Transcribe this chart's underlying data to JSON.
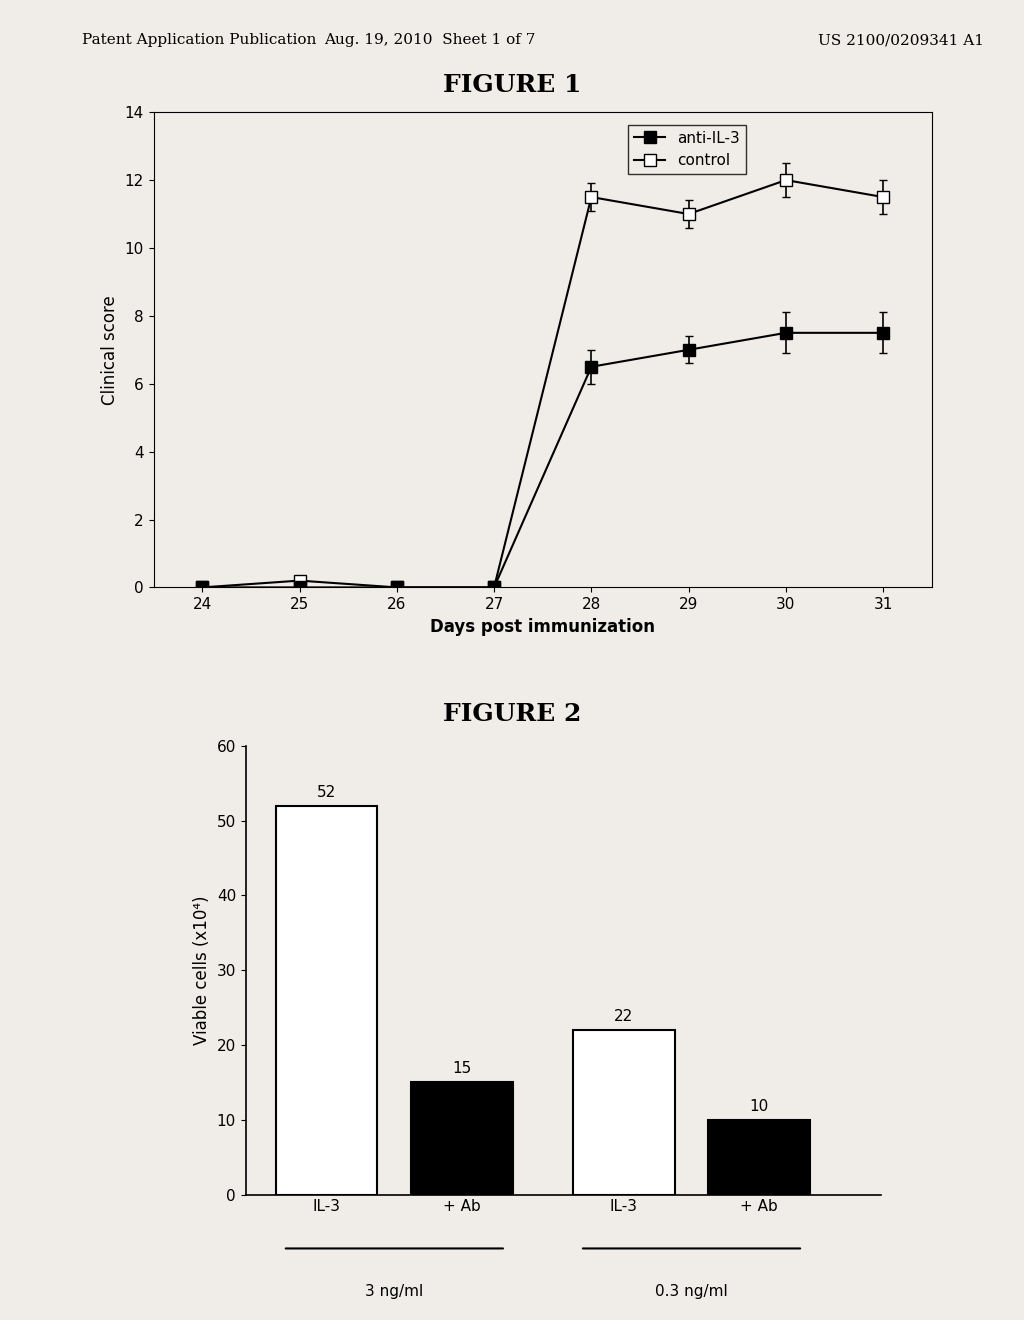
{
  "header_left": "Patent Application Publication",
  "header_mid": "Aug. 19, 2010  Sheet 1 of 7",
  "header_right": "US 2100/0209341 A1",
  "fig1_title": "FIGURE 1",
  "fig1_xlabel": "Days post immunization",
  "fig1_ylabel": "Clinical score",
  "fig1_xdata": [
    24,
    25,
    26,
    27,
    28,
    29,
    30,
    31
  ],
  "fig1_anti_il3_y": [
    0,
    0,
    0,
    0,
    6.5,
    7.0,
    7.5,
    7.5
  ],
  "fig1_anti_il3_yerr": [
    0,
    0,
    0,
    0,
    0.5,
    0.4,
    0.6,
    0.6
  ],
  "fig1_control_y": [
    0,
    0.2,
    0,
    0,
    11.5,
    11.0,
    12.0,
    11.5
  ],
  "fig1_control_yerr": [
    0,
    0,
    0,
    0,
    0.4,
    0.4,
    0.5,
    0.5
  ],
  "fig1_ylim": [
    0,
    14
  ],
  "fig1_yticks": [
    0,
    2,
    4,
    6,
    8,
    10,
    12,
    14
  ],
  "fig1_legend_anti_il3": "anti-IL-3",
  "fig1_legend_control": "control",
  "fig2_title": "FIGURE 2",
  "fig2_ylabel": "Viable cells (x10⁴)",
  "fig2_bar_values": [
    52,
    15,
    22,
    10
  ],
  "fig2_bar_colors": [
    "white",
    "black",
    "white",
    "black"
  ],
  "fig2_bar_labels": [
    "IL-3",
    "+ Ab",
    "IL-3",
    "+ Ab"
  ],
  "fig2_bar_annotations": [
    "52",
    "15",
    "22",
    "10"
  ],
  "fig2_ylim": [
    0,
    60
  ],
  "fig2_yticks": [
    0,
    10,
    20,
    30,
    40,
    50,
    60
  ],
  "fig2_group_labels": [
    "3 ng/ml",
    "0.3 ng/ml"
  ],
  "fig2_xpositions": [
    0,
    1,
    2.2,
    3.2
  ],
  "background_color": "#f0ede8",
  "plot_bg": "#f0ede8"
}
